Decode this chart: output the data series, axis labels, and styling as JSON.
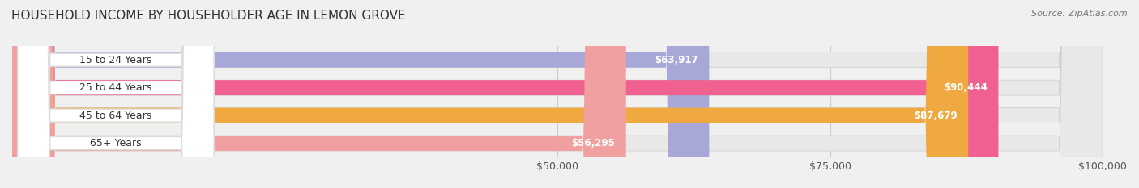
{
  "title": "HOUSEHOLD INCOME BY HOUSEHOLDER AGE IN LEMON GROVE",
  "source": "Source: ZipAtlas.com",
  "categories": [
    "15 to 24 Years",
    "25 to 44 Years",
    "45 to 64 Years",
    "65+ Years"
  ],
  "values": [
    63917,
    90444,
    87679,
    56295
  ],
  "bar_colors": [
    "#a8a8d8",
    "#f06090",
    "#f0a840",
    "#f0a0a0"
  ],
  "label_colors": [
    "#5050a0",
    "#d03070",
    "#d07010",
    "#d06060"
  ],
  "value_labels": [
    "$63,917",
    "$90,444",
    "$87,679",
    "$56,295"
  ],
  "background_color": "#f0f0f0",
  "bar_bg_color": "#e8e8e8",
  "xmin": 0,
  "xmax": 100000,
  "xticks": [
    50000,
    75000,
    100000
  ],
  "xtick_labels": [
    "$50,000",
    "$75,000",
    "$100,000"
  ],
  "figsize": [
    14.06,
    2.33
  ],
  "dpi": 100
}
